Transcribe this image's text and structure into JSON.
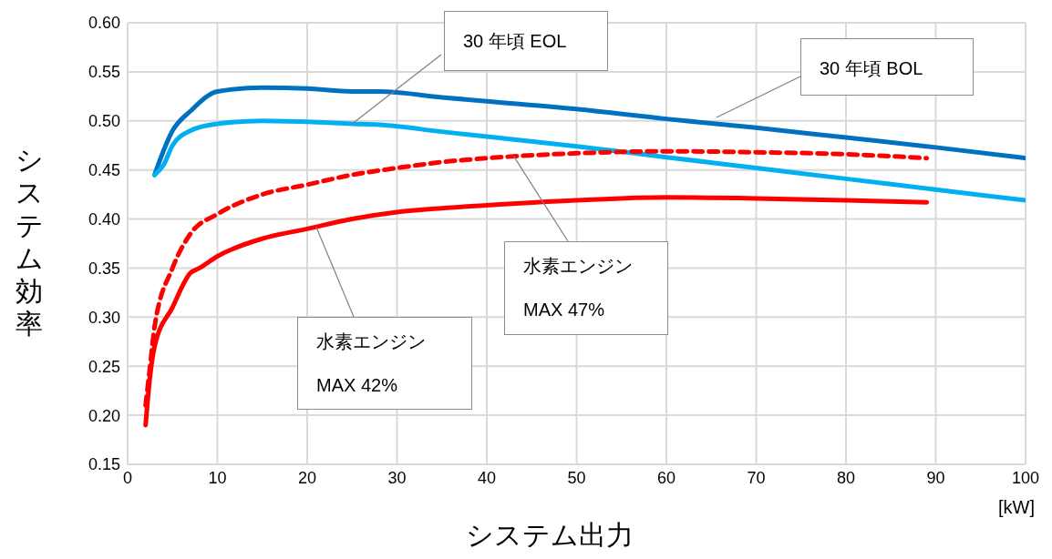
{
  "chart_data": {
    "type": "line",
    "xlabel": "システム出力",
    "ylabel": "システム効率",
    "xlim": [
      0,
      100
    ],
    "xticks": [
      0,
      10,
      20,
      30,
      40,
      50,
      60,
      70,
      80,
      90,
      100
    ],
    "ylim": [
      0.15,
      0.6
    ],
    "yticks": [
      {
        "value": 0.15,
        "label": "0.15"
      },
      {
        "value": 0.2,
        "label": "0.20"
      },
      {
        "value": 0.25,
        "label": "0.25"
      },
      {
        "value": 0.3,
        "label": "0.30"
      },
      {
        "value": 0.35,
        "label": "0.35"
      },
      {
        "value": 0.4,
        "label": "0.40"
      },
      {
        "value": 0.45,
        "label": "0.45"
      },
      {
        "value": 0.5,
        "label": "0.50"
      },
      {
        "value": 0.55,
        "label": "0.55"
      },
      {
        "value": 0.6,
        "label": "0.60"
      }
    ],
    "grid": true,
    "marker": "none",
    "series": [
      {
        "color": "#0070c0",
        "line_style": "solid",
        "x": [
          3,
          5,
          7,
          10,
          15,
          20,
          25,
          28,
          35,
          40,
          50,
          60,
          70,
          80,
          90,
          100
        ],
        "values": [
          0.445,
          0.49,
          0.51,
          0.53,
          0.534,
          0.533,
          0.53,
          0.53,
          0.524,
          0.52,
          0.512,
          0.502,
          0.493,
          0.483,
          0.473,
          0.462
        ]
      },
      {
        "color": "#00b0f0",
        "line_style": "solid",
        "x": [
          3,
          4,
          5,
          7,
          10,
          15,
          20,
          25,
          28,
          35,
          40,
          50,
          60,
          70,
          80,
          90,
          100
        ],
        "values": [
          0.445,
          0.455,
          0.475,
          0.49,
          0.497,
          0.5,
          0.499,
          0.497,
          0.496,
          0.489,
          0.484,
          0.474,
          0.463,
          0.452,
          0.441,
          0.43,
          0.419
        ]
      },
      {
        "color": "#ff0000",
        "line_style": "dashed",
        "x": [
          2,
          2.5,
          3,
          5,
          7,
          10,
          15,
          20,
          25,
          30,
          35,
          40,
          50,
          60,
          70,
          80,
          89
        ],
        "values": [
          0.21,
          0.25,
          0.29,
          0.35,
          0.385,
          0.405,
          0.425,
          0.435,
          0.445,
          0.452,
          0.458,
          0.462,
          0.467,
          0.469,
          0.468,
          0.466,
          0.462
        ]
      },
      {
        "color": "#ff0000",
        "line_style": "solid",
        "x": [
          2,
          2.5,
          3,
          5,
          7,
          8,
          10,
          15,
          20,
          25,
          30,
          35,
          40,
          50,
          60,
          70,
          80,
          89
        ],
        "values": [
          0.19,
          0.24,
          0.27,
          0.31,
          0.345,
          0.35,
          0.362,
          0.38,
          0.39,
          0.4,
          0.407,
          0.411,
          0.414,
          0.419,
          0.422,
          0.421,
          0.419,
          0.417
        ]
      }
    ],
    "annotations": [
      {
        "text": "30 年頃 EOL",
        "x": 25,
        "y": 0.497
      },
      "30 年頃 BOL",
      {
        "text": "水素エンジン",
        "x": 43,
        "y": 0.464
      },
      "MAX 47%",
      {
        "text": "水素エンジン",
        "x": 21,
        "y": 0.392
      },
      "MAX 42%",
      "[kW]"
    ]
  }
}
